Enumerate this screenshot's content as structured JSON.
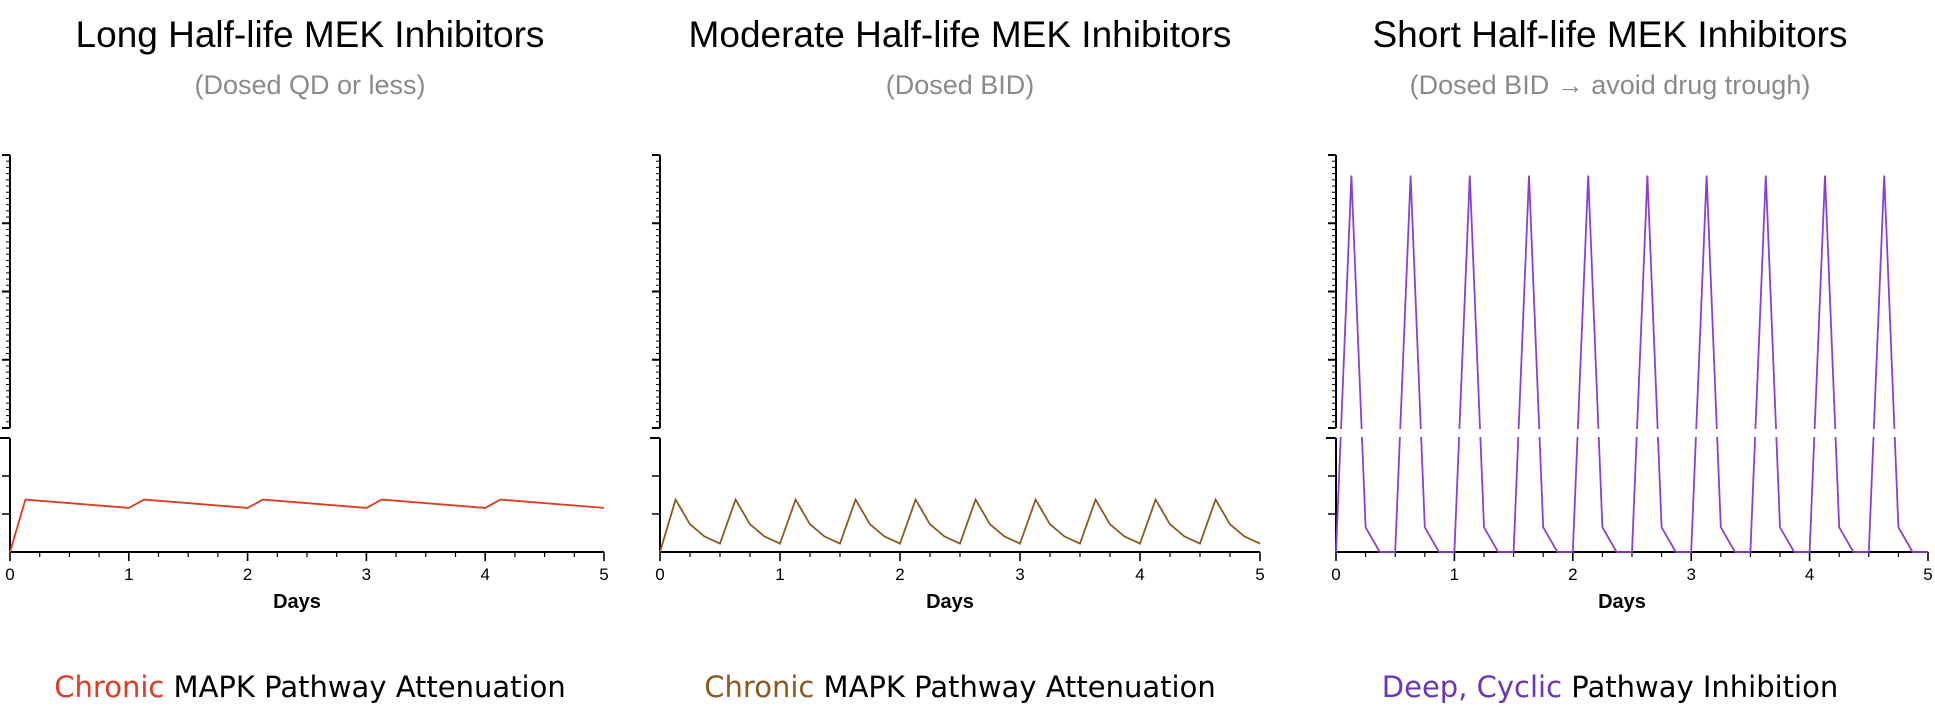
{
  "panels": [
    {
      "title": "Long Half-life MEK Inhibitors",
      "subtitle": "(Dosed QD or less)",
      "caption_highlight": "Chronic",
      "caption_rest": " MAPK Pathway Attenuation",
      "color": "#e03a22",
      "highlight_color": "#e03a22"
    },
    {
      "title": "Moderate Half-life MEK Inhibitors",
      "subtitle": "(Dosed BID)",
      "caption_highlight": "Chronic",
      "caption_rest": " MAPK Pathway Attenuation",
      "color": "#8b5a1e",
      "highlight_color": "#8b5a1e"
    },
    {
      "title": "Short Half-life MEK Inhibitors",
      "subtitle": "(Dosed BID → avoid drug trough)",
      "caption_highlight": "Deep, Cyclic",
      "caption_rest": " Pathway Inhibition",
      "color": "#8a3fd6",
      "highlight_color": "#6a35b8"
    }
  ],
  "chart_data": [
    {
      "type": "line",
      "title": "Long Half-life MEK Inhibitors",
      "xlabel": "Days",
      "ylabel": "",
      "xlim": [
        0,
        5
      ],
      "ylim": [
        0,
        10
      ],
      "axis_break": true,
      "x_ticks": [
        "0",
        "1",
        "2",
        "3",
        "4",
        "5"
      ],
      "x": [
        0,
        0.13,
        1.0,
        1.13,
        2.0,
        2.13,
        3.0,
        3.13,
        4.0,
        4.13,
        5.0
      ],
      "y": [
        0,
        1.38,
        1.16,
        1.38,
        1.16,
        1.38,
        1.16,
        1.38,
        1.16,
        1.38,
        1.16
      ]
    },
    {
      "type": "line",
      "title": "Moderate Half-life MEK Inhibitors",
      "xlabel": "Days",
      "ylabel": "",
      "xlim": [
        0,
        5
      ],
      "ylim": [
        0,
        10
      ],
      "axis_break": true,
      "x_ticks": [
        "0",
        "1",
        "2",
        "3",
        "4",
        "5"
      ],
      "x": [
        0,
        0.13,
        0.25,
        0.37,
        0.5,
        0.63,
        0.75,
        0.87,
        1.0,
        1.13,
        1.25,
        1.37,
        1.5,
        1.63,
        1.75,
        1.87,
        2.0,
        2.13,
        2.25,
        2.37,
        2.5,
        2.63,
        2.75,
        2.87,
        3.0,
        3.13,
        3.25,
        3.37,
        3.5,
        3.63,
        3.75,
        3.87,
        4.0,
        4.13,
        4.25,
        4.37,
        4.5,
        4.63,
        4.75,
        4.87,
        5.0
      ],
      "y": [
        0,
        1.38,
        0.73,
        0.41,
        0.22,
        1.38,
        0.73,
        0.41,
        0.22,
        1.38,
        0.73,
        0.41,
        0.22,
        1.38,
        0.73,
        0.41,
        0.22,
        1.38,
        0.73,
        0.41,
        0.22,
        1.38,
        0.73,
        0.41,
        0.22,
        1.38,
        0.73,
        0.41,
        0.22,
        1.38,
        0.73,
        0.41,
        0.22,
        1.38,
        0.73,
        0.41,
        0.22,
        1.38,
        0.73,
        0.41,
        0.22
      ]
    },
    {
      "type": "line",
      "title": "Short Half-life MEK Inhibitors",
      "xlabel": "Days",
      "ylabel": "",
      "xlim": [
        0,
        5
      ],
      "ylim": [
        0,
        10
      ],
      "axis_break": true,
      "x_ticks": [
        "0",
        "1",
        "2",
        "3",
        "4",
        "5"
      ],
      "x": [
        0,
        0.13,
        0.25,
        0.37,
        0.5,
        0.63,
        0.75,
        0.87,
        1.0,
        1.13,
        1.25,
        1.37,
        1.5,
        1.63,
        1.75,
        1.87,
        2.0,
        2.13,
        2.25,
        2.37,
        2.5,
        2.63,
        2.75,
        2.87,
        3.0,
        3.13,
        3.25,
        3.37,
        3.5,
        3.63,
        3.75,
        3.87,
        4.0,
        4.13,
        4.25,
        4.37,
        4.5,
        4.63,
        4.75,
        4.87,
        5.0
      ],
      "y": [
        0,
        9.5,
        0.65,
        0.0,
        0.0,
        9.5,
        0.65,
        0.0,
        0.0,
        9.5,
        0.65,
        0.0,
        0.0,
        9.5,
        0.65,
        0.0,
        0.0,
        9.5,
        0.65,
        0.0,
        0.0,
        9.5,
        0.65,
        0.0,
        0.0,
        9.5,
        0.65,
        0.0,
        0.0,
        9.5,
        0.65,
        0.0,
        0.0,
        9.5,
        0.65,
        0.0,
        0.0,
        9.5,
        0.65,
        0.0,
        0.0
      ]
    }
  ]
}
